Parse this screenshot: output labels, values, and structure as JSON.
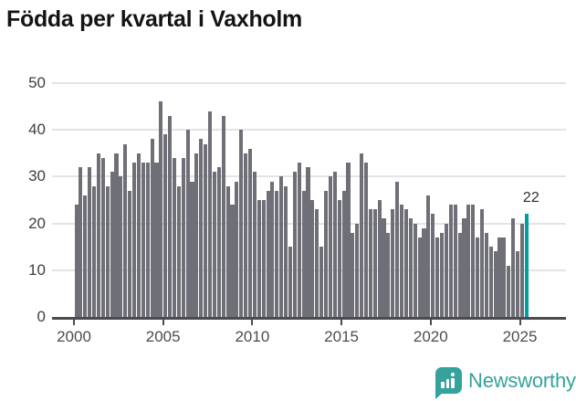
{
  "title": "Födda per kvartal i Vaxholm",
  "chart_data": {
    "type": "bar",
    "title": "Födda per kvartal i Vaxholm",
    "x_freq": "quarterly",
    "x_start": "2000 Q1",
    "x_end": "2025 Q2",
    "x_tick_labels": [
      "2000",
      "2005",
      "2010",
      "2015",
      "2020",
      "2025"
    ],
    "y_tick_labels": [
      "0",
      "10",
      "20",
      "30",
      "40",
      "50"
    ],
    "ylim": [
      0,
      50
    ],
    "grid": true,
    "bar_color": "#6f6f77",
    "highlight_color": "#00a09e",
    "values": [
      24,
      32,
      26,
      32,
      28,
      35,
      34,
      28,
      31,
      35,
      30,
      37,
      27,
      33,
      35,
      33,
      33,
      38,
      33,
      46,
      39,
      43,
      34,
      28,
      34,
      40,
      29,
      35,
      38,
      37,
      44,
      31,
      32,
      43,
      28,
      24,
      29,
      40,
      35,
      36,
      31,
      25,
      25,
      27,
      29,
      27,
      30,
      28,
      15,
      31,
      33,
      27,
      32,
      25,
      23,
      15,
      27,
      30,
      31,
      25,
      27,
      33,
      18,
      20,
      35,
      33,
      23,
      23,
      25,
      21,
      18,
      23,
      29,
      24,
      23,
      21,
      20,
      17,
      19,
      26,
      22,
      17,
      18,
      20,
      24,
      24,
      18,
      21,
      24,
      24,
      17,
      23,
      18,
      15,
      14,
      17,
      17,
      11,
      21,
      14,
      20,
      22
    ],
    "highlight": {
      "index": 101,
      "value": 22,
      "label": "22"
    }
  },
  "footer": {
    "brand": "Newsworthy",
    "brand_color": "#35a29b",
    "logo_icon": "bar-chart-speech-bubble-icon"
  }
}
